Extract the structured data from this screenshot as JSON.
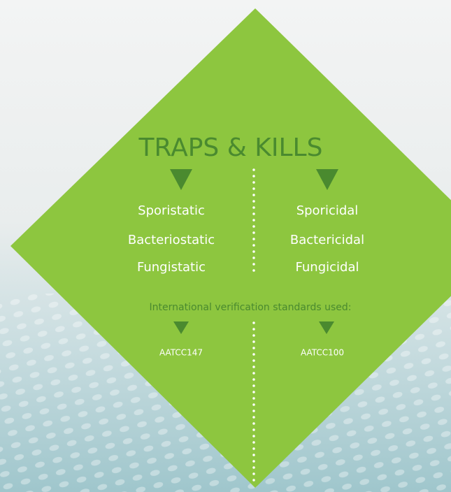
{
  "title": "TRAPS & KILLS",
  "traps": [
    "Sporistatic",
    "Bacteriostatic",
    "Fungistatic"
  ],
  "kills": [
    "Sporicidal",
    "Bactericidal",
    "Fungicidal"
  ],
  "standards": {
    "label": "International verification standards used:",
    "traps": "AATCC147",
    "kills": "AATCC100"
  }
}
